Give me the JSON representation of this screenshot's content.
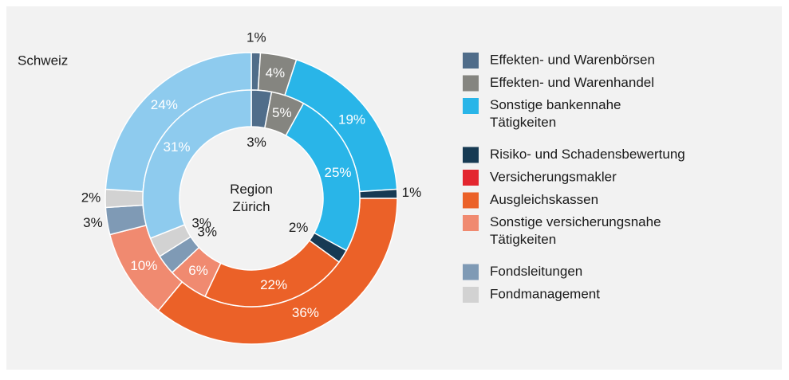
{
  "chart_data": {
    "type": "donut",
    "categories": [
      "Effekten- und Warenbörsen",
      "Effekten- und Warenhandel",
      "Sonstige bankennahe Tätigkeiten",
      "Risiko- und Schadensbewertung",
      "Versicherungsmakler",
      "Ausgleichskassen",
      "Sonstige versicherungsnahe Tätigkeiten",
      "Fondsleitungen",
      "Fondmanagement",
      null
    ],
    "colors": [
      "#506d8a",
      "#858580",
      "#29b5e8",
      "#173a53",
      "#e3262f",
      "#eb6128",
      "#f08a70",
      "#7f9ab5",
      "#d2d2d2",
      "#8ecbee"
    ],
    "series": [
      {
        "name": "Schweiz",
        "values": [
          1,
          4,
          19,
          1,
          0,
          36,
          10,
          3,
          2,
          24
        ],
        "value_labels": [
          "1%",
          "4%",
          "19%",
          "1%",
          null,
          "36%",
          "10%",
          "3%",
          "2%",
          "24%"
        ]
      },
      {
        "name": "Region Zürich",
        "values": [
          3,
          5,
          25,
          2,
          0,
          22,
          6,
          3,
          3,
          31
        ],
        "value_labels": [
          "3%",
          "5%",
          "25%",
          "2%",
          null,
          "22%",
          "6%",
          "3%",
          "3%",
          "31%"
        ]
      }
    ]
  }
}
